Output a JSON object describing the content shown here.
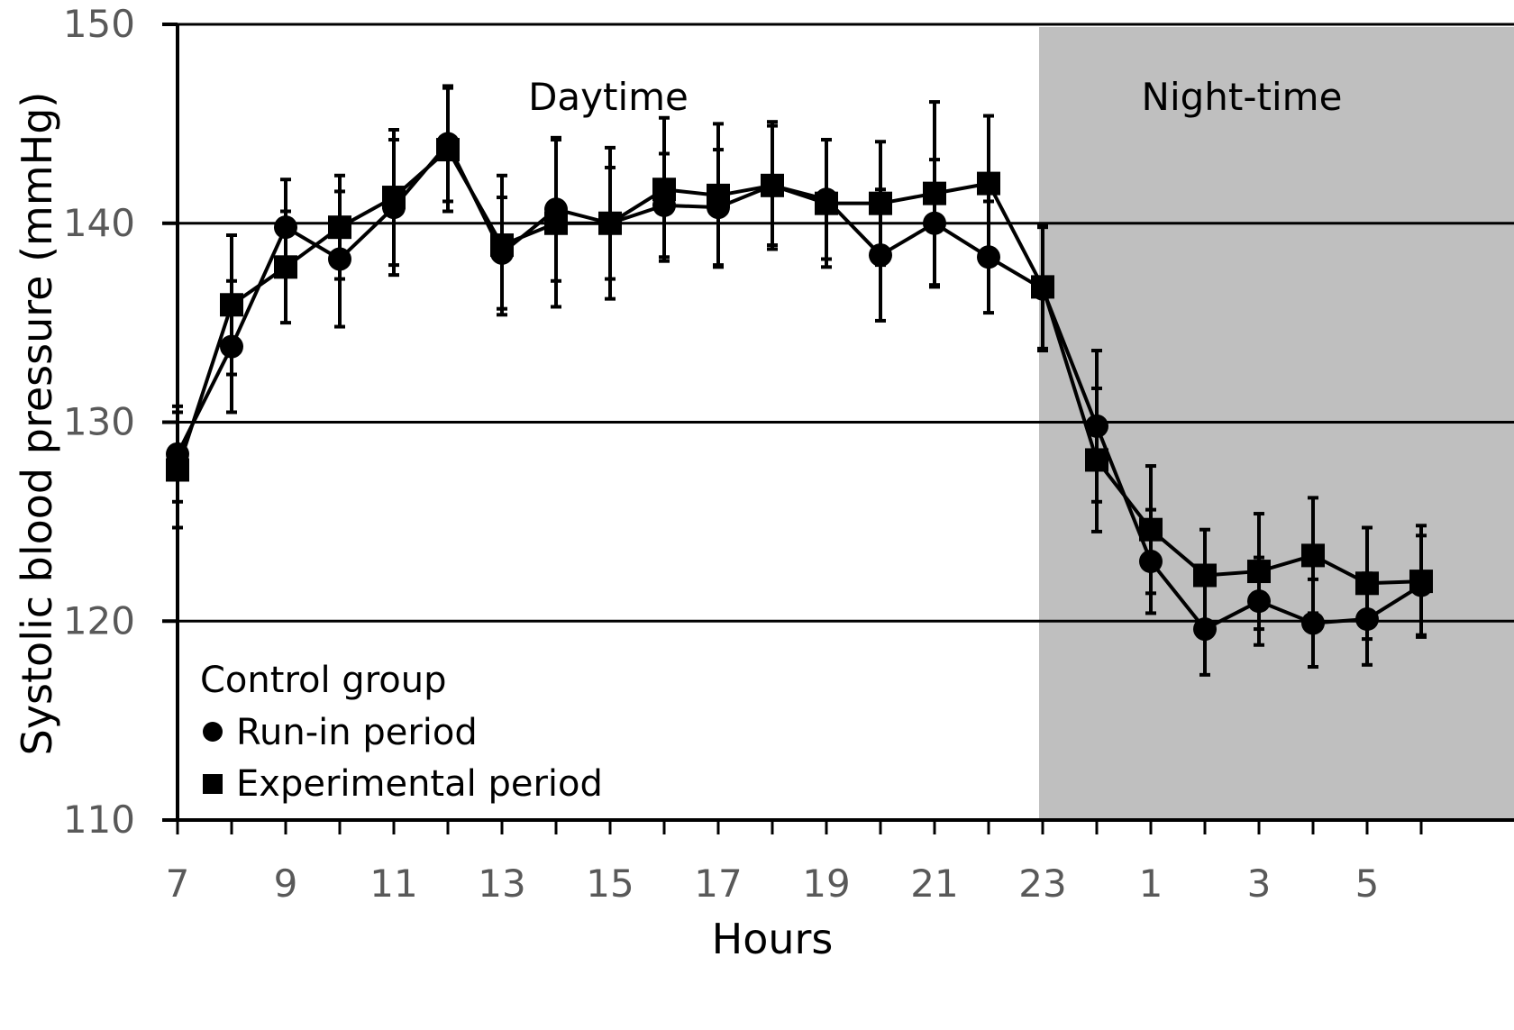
{
  "chart_data": {
    "type": "line",
    "xlabel": "Hours",
    "ylabel": "Systolic blood pressure (mmHg)",
    "ylim": [
      110,
      150
    ],
    "yticks": [
      110,
      120,
      130,
      140,
      150
    ],
    "grid": "horizontal at 120, 130, 140",
    "x": [
      "7",
      "8",
      "9",
      "10",
      "11",
      "12",
      "13",
      "14",
      "15",
      "16",
      "17",
      "18",
      "19",
      "20",
      "21",
      "22",
      "23",
      "24",
      "1",
      "2",
      "3",
      "4",
      "5",
      "6"
    ],
    "x_tick_labels": [
      "7",
      "9",
      "11",
      "13",
      "15",
      "17",
      "19",
      "21",
      "23",
      "1",
      "3",
      "5"
    ],
    "annotations": [
      {
        "text": "Daytime"
      },
      {
        "text": "Night-time"
      }
    ],
    "night_shading_start": "23",
    "legend": {
      "title": "Control group",
      "placement": "bottom-left",
      "entries": [
        "Run-in period",
        "Experimental period"
      ]
    },
    "series": [
      {
        "name": "Run-in period",
        "marker": "circle",
        "values": [
          128.4,
          133.8,
          139.8,
          138.2,
          140.8,
          144.0,
          138.5,
          140.7,
          140.0,
          140.9,
          140.8,
          141.9,
          141.2,
          138.4,
          140.0,
          138.3,
          136.7,
          129.8,
          123.0,
          119.6,
          121.0,
          119.9,
          120.1,
          121.8
        ],
        "errors": [
          2.4,
          3.3,
          2.4,
          3.4,
          3.4,
          2.9,
          2.8,
          3.6,
          2.8,
          2.6,
          2.9,
          3.0,
          3.0,
          3.3,
          3.2,
          2.8,
          3.1,
          3.8,
          2.6,
          2.3,
          2.2,
          2.2,
          2.3,
          2.5
        ]
      },
      {
        "name": "Experimental period",
        "marker": "square",
        "values": [
          127.6,
          135.9,
          137.8,
          139.8,
          141.3,
          143.7,
          138.9,
          140.0,
          140.0,
          141.7,
          141.4,
          141.9,
          141.0,
          141.0,
          141.5,
          142.0,
          136.8,
          128.1,
          124.6,
          122.3,
          122.5,
          123.3,
          121.9,
          122.0
        ],
        "errors": [
          2.9,
          3.5,
          2.8,
          2.6,
          3.4,
          3.1,
          3.5,
          4.2,
          3.8,
          3.6,
          3.6,
          3.2,
          3.2,
          3.1,
          4.6,
          3.4,
          3.1,
          3.6,
          3.2,
          2.3,
          2.9,
          2.9,
          2.8,
          2.8
        ]
      }
    ]
  }
}
